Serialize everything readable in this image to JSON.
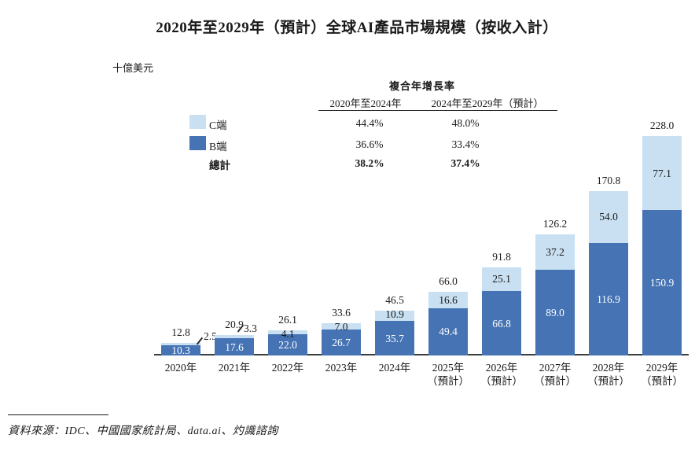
{
  "title": "2020年至2029年（預計）全球AI產品市場規模（按收入計）",
  "cagr_table": {
    "title": "複合年增長率",
    "col_headers": [
      "2020年至2024年",
      "2024年至2029年（預計）"
    ],
    "rows": [
      {
        "label": "C端",
        "v1": "44.4%",
        "v2": "48.0%"
      },
      {
        "label": "B端",
        "v1": "36.6%",
        "v2": "33.4%"
      },
      {
        "label": "總計",
        "v1": "38.2%",
        "v2": "37.4%"
      }
    ]
  },
  "chart_data": {
    "type": "bar",
    "stacked": true,
    "title": "2020年至2029年（預計）全球AI產品市場規模（按收入計）",
    "ylabel": "十億美元",
    "xlabel": "",
    "ylim": [
      0,
      240
    ],
    "grid": false,
    "legend_position": "upper-left",
    "categories": [
      "2020年",
      "2021年",
      "2022年",
      "2023年",
      "2024年",
      "2025年",
      "2026年",
      "2027年",
      "2028年",
      "2029年"
    ],
    "forecast_note": "（預計）",
    "forecast_start_index": 5,
    "series": [
      {
        "name": "B端",
        "color": "#4573b4",
        "values": [
          10.3,
          17.6,
          22.0,
          26.7,
          35.7,
          49.4,
          66.8,
          89.0,
          116.9,
          150.9
        ]
      },
      {
        "name": "C端",
        "color": "#c8e0f2",
        "values": [
          2.5,
          3.3,
          4.1,
          7.0,
          10.9,
          16.6,
          25.1,
          37.2,
          54.0,
          77.1
        ]
      }
    ],
    "totals": [
      12.8,
      20.9,
      26.1,
      33.6,
      46.5,
      66.0,
      91.8,
      126.2,
      170.8,
      228.0
    ]
  },
  "colors": {
    "c_segment": "#c8e0f2",
    "b_segment": "#4573b4",
    "axis": "#3d3d3d",
    "text": "#1a1a1a"
  },
  "source": "資料來源：IDC、中國國家統計局、data.ai、灼識諮詢"
}
